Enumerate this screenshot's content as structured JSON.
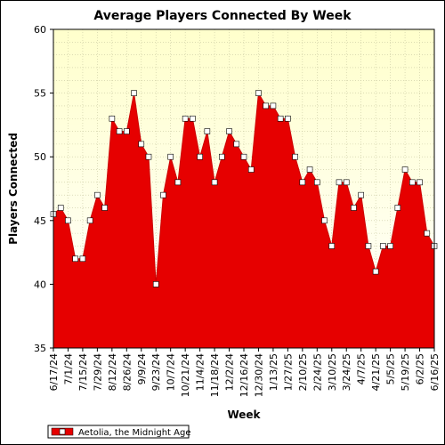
{
  "chart_data": {
    "type": "area",
    "title": "Average Players Connected By Week",
    "xlabel": "Week",
    "ylabel": "Players Connected",
    "ylim": [
      35,
      60
    ],
    "y_ticks": [
      "35",
      "40",
      "45",
      "50",
      "55",
      "60"
    ],
    "grid": true,
    "legend_position": "bottom-left",
    "colors": {
      "plot_bg_top": "#ffffcc",
      "plot_bg_bottom": "#ffffff",
      "fill": "#e60000",
      "line": "#cc0000",
      "marker_fill": "#ffffff",
      "grid": "#c8c8a0"
    },
    "x_tick_labels": [
      "6/17/24",
      "7/1/24",
      "7/15/24",
      "7/29/24",
      "8/12/24",
      "8/26/24",
      "9/9/24",
      "9/23/24",
      "10/7/24",
      "10/21/24",
      "11/4/24",
      "11/18/24",
      "12/2/24",
      "12/16/24",
      "12/30/24",
      "1/13/25",
      "1/27/25",
      "2/10/25",
      "2/24/25",
      "3/10/25",
      "3/24/25",
      "4/7/25",
      "4/21/25",
      "5/5/25",
      "5/19/25",
      "6/2/25",
      "6/16/25"
    ],
    "x": [
      "6/17/24",
      "6/24/24",
      "7/1/24",
      "7/8/24",
      "7/15/24",
      "7/22/24",
      "7/29/24",
      "8/5/24",
      "8/12/24",
      "8/19/24",
      "8/26/24",
      "9/2/24",
      "9/9/24",
      "9/16/24",
      "9/23/24",
      "9/30/24",
      "10/7/24",
      "10/14/24",
      "10/21/24",
      "10/28/24",
      "11/4/24",
      "11/11/24",
      "11/18/24",
      "11/25/24",
      "12/2/24",
      "12/9/24",
      "12/16/24",
      "12/23/24",
      "12/30/24",
      "1/6/25",
      "1/13/25",
      "1/20/25",
      "1/27/25",
      "2/3/25",
      "2/10/25",
      "2/17/25",
      "2/24/25",
      "3/3/25",
      "3/10/25",
      "3/17/25",
      "3/24/25",
      "3/31/25",
      "4/7/25",
      "4/14/25",
      "4/21/25",
      "4/28/25",
      "5/5/25",
      "5/12/25",
      "5/19/25",
      "5/26/25",
      "6/2/25",
      "6/9/25",
      "6/16/25"
    ],
    "series": [
      {
        "name": "Aetolia, the Midnight Age",
        "values": [
          45.5,
          46,
          45,
          42,
          42,
          45,
          47,
          46,
          53,
          52,
          52,
          55,
          51,
          50,
          40,
          47,
          50,
          48,
          53,
          53,
          50,
          52,
          48,
          50,
          52,
          51,
          50,
          49,
          55,
          54,
          54,
          53,
          53,
          50,
          48,
          49,
          48,
          45,
          43,
          48,
          48,
          46,
          47,
          43,
          41,
          43,
          43,
          46,
          49,
          48,
          48,
          44,
          43
        ]
      }
    ]
  }
}
